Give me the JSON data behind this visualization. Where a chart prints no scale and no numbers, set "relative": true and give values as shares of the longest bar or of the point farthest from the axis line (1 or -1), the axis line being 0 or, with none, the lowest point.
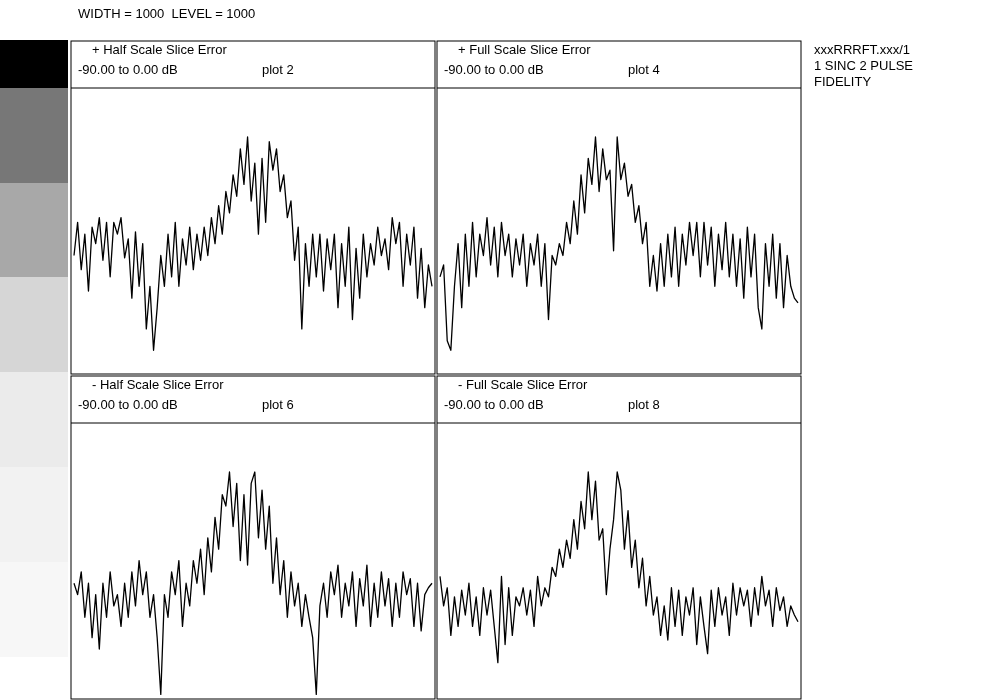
{
  "chart_data": [
    {
      "type": "line",
      "title": "+ Half Scale Slice Error",
      "subtitle": "-90.00 to 0.00 dB",
      "annotations": [
        "plot 2",
        "WIDTH = 1000  LEVEL = 1000"
      ],
      "relative": true,
      "categories": [
        null,
        null,
        null,
        null,
        null,
        null,
        null,
        null,
        null,
        null,
        null,
        null,
        null,
        null,
        null,
        null,
        null,
        null,
        null,
        null,
        null,
        null,
        null,
        null,
        null,
        null,
        null,
        null,
        null,
        null,
        null,
        null,
        null,
        null,
        null,
        null,
        null,
        null,
        null,
        null,
        null,
        null,
        null,
        null,
        null,
        null,
        null,
        null,
        null,
        null,
        null,
        null,
        null,
        null,
        null,
        null,
        null,
        null,
        null,
        null,
        null,
        null,
        null,
        null,
        null,
        null,
        null,
        null,
        null,
        null,
        null,
        null,
        null,
        null,
        null,
        null,
        null,
        null,
        null,
        null,
        null,
        null,
        null,
        null,
        null,
        null,
        null,
        null,
        null,
        null,
        null,
        null,
        null,
        null,
        null,
        null,
        null,
        null,
        null,
        null
      ],
      "series": [
        {
          "color": "#000000",
          "values": [
            0.5,
            0.64,
            0.44,
            0.59,
            0.35,
            0.62,
            0.55,
            0.66,
            0.48,
            0.64,
            0.41,
            0.64,
            0.59,
            0.66,
            0.49,
            0.57,
            0.32,
            0.6,
            0.37,
            0.55,
            0.19,
            0.37,
            0.1,
            0.28,
            0.5,
            0.37,
            0.59,
            0.41,
            0.64,
            0.37,
            0.57,
            0.46,
            0.62,
            0.44,
            0.59,
            0.48,
            0.62,
            0.5,
            0.66,
            0.55,
            0.71,
            0.59,
            0.77,
            0.68,
            0.84,
            0.75,
            0.95,
            0.8,
            1,
            0.73,
            0.89,
            0.59,
            0.91,
            0.64,
            0.98,
            0.86,
            0.95,
            0.77,
            0.84,
            0.66,
            0.73,
            0.48,
            0.62,
            0.19,
            0.55,
            0.37,
            0.59,
            0.41,
            0.59,
            0.35,
            0.57,
            0.44,
            0.59,
            0.28,
            0.55,
            0.37,
            0.62,
            0.23,
            0.53,
            0.32,
            0.59,
            0.41,
            0.55,
            0.46,
            0.62,
            0.5,
            0.57,
            0.44,
            0.66,
            0.55,
            0.64,
            0.37,
            0.59,
            0.46,
            0.62,
            0.32,
            0.53,
            0.28,
            0.46,
            0.37
          ]
        }
      ]
    },
    {
      "type": "line",
      "title": "+ Full Scale Slice Error",
      "subtitle": "-90.00 to 0.00 dB",
      "annotations": [
        "plot 4",
        "xxxRRRFT.xxx/1",
        "1 SINC 2 PULSE",
        "FIDELITY"
      ],
      "relative": true,
      "categories": [
        null,
        null,
        null,
        null,
        null,
        null,
        null,
        null,
        null,
        null,
        null,
        null,
        null,
        null,
        null,
        null,
        null,
        null,
        null,
        null,
        null,
        null,
        null,
        null,
        null,
        null,
        null,
        null,
        null,
        null,
        null,
        null,
        null,
        null,
        null,
        null,
        null,
        null,
        null,
        null,
        null,
        null,
        null,
        null,
        null,
        null,
        null,
        null,
        null,
        null,
        null,
        null,
        null,
        null,
        null,
        null,
        null,
        null,
        null,
        null,
        null,
        null,
        null,
        null,
        null,
        null,
        null,
        null,
        null,
        null,
        null,
        null,
        null,
        null,
        null,
        null,
        null,
        null,
        null,
        null,
        null,
        null,
        null,
        null,
        null,
        null,
        null,
        null,
        null,
        null,
        null,
        null,
        null,
        null,
        null,
        null,
        null,
        null,
        null,
        null
      ],
      "series": [
        {
          "color": "#000000",
          "values": [
            0.41,
            0.46,
            0.14,
            0.1,
            0.37,
            0.55,
            0.28,
            0.59,
            0.37,
            0.64,
            0.41,
            0.59,
            0.5,
            0.66,
            0.46,
            0.62,
            0.41,
            0.64,
            0.5,
            0.59,
            0.41,
            0.57,
            0.46,
            0.59,
            0.37,
            0.55,
            0.46,
            0.59,
            0.37,
            0.55,
            0.23,
            0.5,
            0.46,
            0.55,
            0.5,
            0.64,
            0.55,
            0.73,
            0.59,
            0.84,
            0.68,
            0.91,
            0.8,
            1,
            0.77,
            0.95,
            0.82,
            0.86,
            0.52,
            1,
            0.82,
            0.89,
            0.75,
            0.8,
            0.64,
            0.71,
            0.55,
            0.64,
            0.37,
            0.5,
            0.35,
            0.55,
            0.37,
            0.59,
            0.41,
            0.62,
            0.37,
            0.59,
            0.46,
            0.64,
            0.5,
            0.64,
            0.41,
            0.64,
            0.46,
            0.62,
            0.37,
            0.59,
            0.44,
            0.64,
            0.41,
            0.59,
            0.37,
            0.57,
            0.32,
            0.62,
            0.41,
            0.59,
            0.28,
            0.19,
            0.55,
            0.37,
            0.59,
            0.32,
            0.55,
            0.28,
            0.5,
            0.37,
            0.32,
            0.3
          ]
        }
      ]
    },
    {
      "type": "line",
      "title": "- Half Scale Slice Error",
      "subtitle": "-90.00 to 0.00 dB",
      "annotations": [
        "plot 6"
      ],
      "relative": true,
      "categories": [
        null,
        null,
        null,
        null,
        null,
        null,
        null,
        null,
        null,
        null,
        null,
        null,
        null,
        null,
        null,
        null,
        null,
        null,
        null,
        null,
        null,
        null,
        null,
        null,
        null,
        null,
        null,
        null,
        null,
        null,
        null,
        null,
        null,
        null,
        null,
        null,
        null,
        null,
        null,
        null,
        null,
        null,
        null,
        null,
        null,
        null,
        null,
        null,
        null,
        null,
        null,
        null,
        null,
        null,
        null,
        null,
        null,
        null,
        null,
        null,
        null,
        null,
        null,
        null,
        null,
        null,
        null,
        null,
        null,
        null,
        null,
        null,
        null,
        null,
        null,
        null,
        null,
        null,
        null,
        null,
        null,
        null,
        null,
        null,
        null,
        null,
        null,
        null,
        null,
        null,
        null,
        null,
        null,
        null,
        null,
        null,
        null,
        null,
        null,
        null
      ],
      "series": [
        {
          "color": "#000000",
          "values": [
            0.51,
            0.46,
            0.56,
            0.36,
            0.51,
            0.27,
            0.46,
            0.22,
            0.51,
            0.36,
            0.56,
            0.41,
            0.46,
            0.32,
            0.51,
            0.36,
            0.56,
            0.41,
            0.61,
            0.46,
            0.56,
            0.36,
            0.46,
            0.27,
            0.02,
            0.46,
            0.36,
            0.56,
            0.46,
            0.61,
            0.32,
            0.51,
            0.41,
            0.61,
            0.51,
            0.66,
            0.46,
            0.71,
            0.56,
            0.8,
            0.66,
            0.9,
            0.85,
            1,
            0.76,
            0.95,
            0.61,
            0.9,
            0.59,
            0.95,
            1,
            0.71,
            0.92,
            0.66,
            0.85,
            0.51,
            0.71,
            0.46,
            0.61,
            0.36,
            0.56,
            0.41,
            0.51,
            0.32,
            0.46,
            0.36,
            0.27,
            0.02,
            0.41,
            0.51,
            0.36,
            0.56,
            0.46,
            0.59,
            0.36,
            0.51,
            0.41,
            0.56,
            0.32,
            0.53,
            0.41,
            0.59,
            0.32,
            0.51,
            0.36,
            0.56,
            0.41,
            0.53,
            0.32,
            0.51,
            0.36,
            0.56,
            0.46,
            0.53,
            0.32,
            0.51,
            0.3,
            0.46,
            0.49,
            0.51
          ]
        }
      ]
    },
    {
      "type": "line",
      "title": "- Full Scale Slice Error",
      "subtitle": "-90.00 to 0.00 dB",
      "annotations": [
        "plot 8"
      ],
      "relative": true,
      "categories": [
        null,
        null,
        null,
        null,
        null,
        null,
        null,
        null,
        null,
        null,
        null,
        null,
        null,
        null,
        null,
        null,
        null,
        null,
        null,
        null,
        null,
        null,
        null,
        null,
        null,
        null,
        null,
        null,
        null,
        null,
        null,
        null,
        null,
        null,
        null,
        null,
        null,
        null,
        null,
        null,
        null,
        null,
        null,
        null,
        null,
        null,
        null,
        null,
        null,
        null,
        null,
        null,
        null,
        null,
        null,
        null,
        null,
        null,
        null,
        null,
        null,
        null,
        null,
        null,
        null,
        null,
        null,
        null,
        null,
        null,
        null,
        null,
        null,
        null,
        null,
        null,
        null,
        null,
        null,
        null,
        null,
        null,
        null,
        null,
        null,
        null,
        null,
        null,
        null,
        null,
        null,
        null,
        null,
        null,
        null,
        null,
        null,
        null,
        null,
        null
      ],
      "series": [
        {
          "color": "#000000",
          "values": [
            0.54,
            0.41,
            0.49,
            0.28,
            0.45,
            0.32,
            0.48,
            0.37,
            0.51,
            0.32,
            0.45,
            0.28,
            0.49,
            0.37,
            0.48,
            0.32,
            0.16,
            0.54,
            0.24,
            0.49,
            0.28,
            0.45,
            0.41,
            0.49,
            0.37,
            0.48,
            0.32,
            0.54,
            0.41,
            0.49,
            0.45,
            0.58,
            0.54,
            0.66,
            0.58,
            0.7,
            0.62,
            0.79,
            0.66,
            0.87,
            0.75,
            1,
            0.79,
            0.96,
            0.7,
            0.75,
            0.46,
            0.66,
            0.79,
            1,
            0.92,
            0.66,
            0.83,
            0.58,
            0.7,
            0.49,
            0.62,
            0.41,
            0.54,
            0.37,
            0.45,
            0.28,
            0.41,
            0.26,
            0.49,
            0.32,
            0.48,
            0.28,
            0.45,
            0.37,
            0.49,
            0.24,
            0.45,
            0.32,
            0.2,
            0.48,
            0.32,
            0.49,
            0.37,
            0.45,
            0.28,
            0.51,
            0.37,
            0.49,
            0.41,
            0.48,
            0.32,
            0.49,
            0.37,
            0.54,
            0.41,
            0.48,
            0.32,
            0.49,
            0.39,
            0.45,
            0.32,
            0.41,
            0.37,
            0.34
          ]
        }
      ]
    }
  ]
}
